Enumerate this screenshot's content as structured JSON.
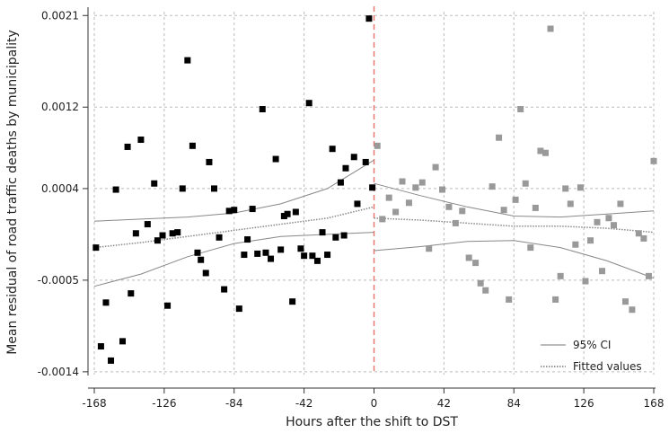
{
  "chart_data": {
    "type": "scatter",
    "xlabel": "Hours after the shift to DST",
    "ylabel": "Mean residual of road traffic deaths by municipality",
    "x_ticks": [
      -168,
      -126,
      -84,
      -42,
      0,
      42,
      84,
      126,
      168
    ],
    "y_ticks": [
      -0.0014,
      -0.0005,
      0.0004,
      0.0012,
      0.0021
    ],
    "y_tick_labels": [
      "-0.0014",
      "-0.0005",
      "0.0004",
      "0.0012",
      "0.0021"
    ],
    "xlim": [
      -168,
      168
    ],
    "ylim": [
      -0.00141,
      0.00212
    ],
    "grid": true,
    "grid_style": "dashed",
    "cutoff_x": 0,
    "cutoff_color": "#e8716a",
    "legend_position": "bottom-right",
    "legend": [
      {
        "label": "95% CI",
        "style": "solid"
      },
      {
        "label": "Fitted values",
        "style": "dotted"
      }
    ],
    "series": [
      {
        "color": "#000000",
        "points": [
          [
            -167,
            -0.00018
          ],
          [
            -164,
            -0.00115
          ],
          [
            -161,
            -0.00072
          ],
          [
            -158,
            -0.00129
          ],
          [
            -155,
            0.00039
          ],
          [
            -151,
            -0.0011
          ],
          [
            -148,
            0.00081
          ],
          [
            -146,
            -0.00063
          ],
          [
            -143,
            -4e-05
          ],
          [
            -140,
            0.00088
          ],
          [
            -136,
            5e-05
          ],
          [
            -132,
            0.00045
          ],
          [
            -130,
            -0.00011
          ],
          [
            -127,
            -6e-05
          ],
          [
            -124,
            -0.00075
          ],
          [
            -121,
            -4e-05
          ],
          [
            -118,
            -3e-05
          ],
          [
            -115,
            0.0004
          ],
          [
            -112,
            0.00166
          ],
          [
            -109,
            0.00082
          ],
          [
            -106,
            -0.00023
          ],
          [
            -104,
            -0.0003
          ],
          [
            -101,
            -0.00043
          ],
          [
            -99,
            0.00066
          ],
          [
            -96,
            0.0004
          ],
          [
            -93,
            -8e-05
          ],
          [
            -90,
            -0.00059
          ],
          [
            -87,
            0.00018
          ],
          [
            -84,
            0.00019
          ],
          [
            -81,
            -0.00078
          ],
          [
            -78,
            -0.00025
          ],
          [
            -76,
            -0.0001
          ],
          [
            -73,
            0.0002
          ],
          [
            -70,
            -0.00024
          ],
          [
            -67,
            0.00118
          ],
          [
            -65,
            -0.00023
          ],
          [
            -62,
            -0.00029
          ],
          [
            -59,
            0.00069
          ],
          [
            -56,
            -0.0002
          ],
          [
            -54,
            0.00013
          ],
          [
            -52,
            0.00015
          ],
          [
            -49,
            -0.00071
          ],
          [
            -47,
            0.00017
          ],
          [
            -44,
            -0.00019
          ],
          [
            -42,
            -0.00026
          ],
          [
            -39,
            0.00124
          ],
          [
            -37,
            -0.00026
          ],
          [
            -34,
            -0.00031
          ],
          [
            -31,
            -3e-05
          ],
          [
            -28,
            -0.00025
          ],
          [
            -25,
            0.00079
          ],
          [
            -23,
            -8e-05
          ],
          [
            -20,
            0.00046
          ],
          [
            -18,
            -6e-05
          ],
          [
            -17,
            0.0006
          ],
          [
            -12,
            0.00071
          ],
          [
            -10,
            0.00025
          ],
          [
            -5,
            0.00066
          ],
          [
            -3,
            0.00207
          ],
          [
            -1,
            0.00041
          ]
        ]
      },
      {
        "color": "#999999",
        "points": [
          [
            2,
            0.00082
          ],
          [
            5,
            0.0001
          ],
          [
            9,
            0.00031
          ],
          [
            13,
            0.00017
          ],
          [
            17,
            0.00047
          ],
          [
            21,
            0.00026
          ],
          [
            25,
            0.00041
          ],
          [
            29,
            0.00046
          ],
          [
            33,
            -0.00019
          ],
          [
            37,
            0.00061
          ],
          [
            41,
            0.00039
          ],
          [
            45,
            0.00022
          ],
          [
            49,
            6e-05
          ],
          [
            53,
            0.00018
          ],
          [
            57,
            -0.00028
          ],
          [
            61,
            -0.00033
          ],
          [
            64,
            -0.00053
          ],
          [
            67,
            -0.0006
          ],
          [
            71,
            0.00042
          ],
          [
            75,
            0.0009
          ],
          [
            78,
            0.00019
          ],
          [
            81,
            -0.00069
          ],
          [
            85,
            0.00029
          ],
          [
            88,
            0.00118
          ],
          [
            91,
            0.00045
          ],
          [
            94,
            -0.00018
          ],
          [
            97,
            0.00021
          ],
          [
            100,
            0.00077
          ],
          [
            103,
            0.00075
          ],
          [
            106,
            0.00197
          ],
          [
            109,
            -0.00069
          ],
          [
            112,
            -0.00046
          ],
          [
            115,
            0.0004
          ],
          [
            118,
            0.00025
          ],
          [
            121,
            -0.00015
          ],
          [
            124,
            0.00041
          ],
          [
            127,
            -0.00051
          ],
          [
            130,
            -0.00011
          ],
          [
            134,
            7e-05
          ],
          [
            137,
            -0.00041
          ],
          [
            141,
            0.00011
          ],
          [
            144,
            4e-05
          ],
          [
            148,
            0.00025
          ],
          [
            151,
            -0.00071
          ],
          [
            155,
            -0.00079
          ],
          [
            159,
            -4e-05
          ],
          [
            162,
            -9e-05
          ],
          [
            165,
            -0.00046
          ],
          [
            168,
            0.00067
          ]
        ]
      }
    ],
    "fit_lines": {
      "left": {
        "x": [
          -168,
          -140,
          -112,
          -84,
          -56,
          -28,
          0
        ],
        "fitted": [
          -0.00018,
          -0.00013,
          -7e-05,
          -1e-05,
          5e-05,
          0.00011,
          0.00022
        ],
        "ci_upper": [
          8e-05,
          0.0001,
          0.00012,
          0.00016,
          0.00025,
          0.0004,
          0.00068
        ],
        "ci_lower": [
          -0.00056,
          -0.00044,
          -0.00027,
          -0.00014,
          -7e-05,
          -5e-05,
          -3e-05
        ]
      },
      "right": {
        "x": [
          0,
          28,
          56,
          84,
          112,
          140,
          168
        ],
        "fitted": [
          0.00011,
          9e-05,
          6e-05,
          3e-05,
          3e-05,
          1e-05,
          -3e-05
        ],
        "ci_upper": [
          0.00045,
          0.00033,
          0.00022,
          0.00013,
          0.00012,
          0.00015,
          0.00018
        ],
        "ci_lower": [
          -0.00021,
          -0.00017,
          -0.00012,
          -0.00011,
          -0.00018,
          -0.00031,
          -0.00048
        ]
      }
    }
  }
}
